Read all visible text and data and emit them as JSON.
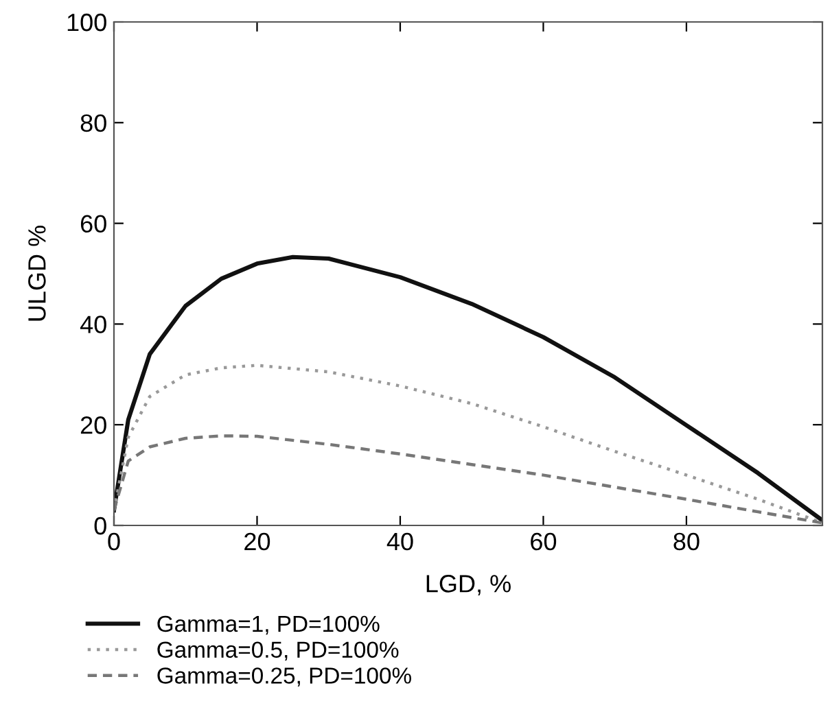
{
  "chart_data": {
    "type": "line",
    "xlabel": "LGD, %",
    "ylabel": "ULGD %",
    "xlim": [
      0,
      99
    ],
    "ylim": [
      0,
      100
    ],
    "xticks": [
      0,
      20,
      40,
      60,
      80
    ],
    "yticks": [
      0,
      20,
      40,
      60,
      80,
      100
    ],
    "grid": false,
    "legend": "bottom",
    "marker": "none",
    "series": [
      {
        "name": "Gamma=1, PD=100%",
        "color": "#111111",
        "line_style": "solid",
        "x": [
          0,
          1,
          2,
          5,
          10,
          15,
          20,
          25,
          30,
          40,
          50,
          60,
          70,
          80,
          90,
          99
        ],
        "values": [
          3,
          12,
          21,
          34,
          43.6,
          49,
          52,
          53.3,
          53,
          49.3,
          44,
          37.4,
          29.4,
          19.9,
          10.4,
          1
        ]
      },
      {
        "name": "Gamma=0.5, PD=100%",
        "color": "#999999",
        "line_style": "dotted",
        "x": [
          0,
          2,
          5,
          10,
          15,
          20,
          30,
          40,
          50,
          60,
          70,
          80,
          90,
          99
        ],
        "values": [
          3,
          17.5,
          25.6,
          29.9,
          31.3,
          31.8,
          30.5,
          27.7,
          24.2,
          19.6,
          14.7,
          10,
          5.2,
          0.5
        ]
      },
      {
        "name": "Gamma=0.25, PD=100%",
        "color": "#777777",
        "line_style": "dashed",
        "x": [
          0,
          2,
          5,
          10,
          15,
          20,
          30,
          40,
          50,
          60,
          70,
          80,
          90,
          99
        ],
        "values": [
          3,
          12.8,
          15.6,
          17.3,
          17.8,
          17.7,
          16.1,
          14.2,
          12.1,
          10,
          7.6,
          5.2,
          2.7,
          0.5
        ]
      }
    ]
  }
}
